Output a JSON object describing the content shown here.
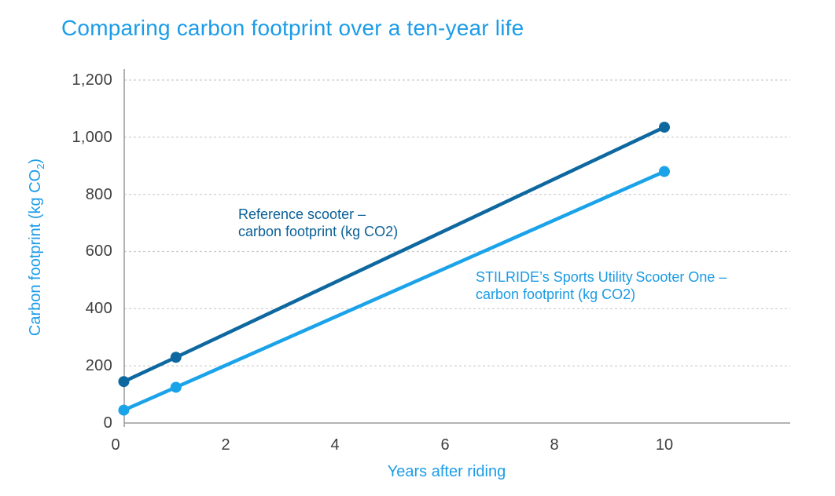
{
  "title": "Comparing carbon footprint over a ten-year life",
  "axes": {
    "y_label_prefix": "Carbon footprint (kg CO",
    "y_label_sub": "2",
    "y_label_suffix": ")",
    "x_label": "Years after riding",
    "y_ticks": [
      "1,200",
      "1,000",
      "800",
      "600",
      "400",
      "200",
      "0"
    ],
    "x_ticks": [
      "0",
      "2",
      "4",
      "6",
      "8",
      "10"
    ]
  },
  "annotations": {
    "reference": {
      "line1": "Reference scooter –",
      "line2": "carbon footprint (kg CO2)"
    },
    "stilride": {
      "line1": "STILRIDE’s Sports Utility Scooter One –",
      "line2": "carbon footprint (kg CO2)"
    }
  },
  "colors": {
    "accent_azure": "#1b9ce8",
    "reference_line": "#0e68a0",
    "stilride_line": "#1ba3ea",
    "tick_text": "#3e3e3e",
    "axis_line": "#9a9a9a",
    "gridline": "#cccccc",
    "background": "#ffffff"
  },
  "chart_data": {
    "type": "line",
    "title": "Comparing carbon footprint over a ten-year life",
    "xlabel": "Years after riding",
    "ylabel": "Carbon footprint (kg CO2)",
    "x": [
      0.15,
      1.1,
      10
    ],
    "series": [
      {
        "name": "Reference scooter – carbon footprint (kg CO2)",
        "color": "#0e68a0",
        "values": [
          145,
          230,
          1035
        ]
      },
      {
        "name": "STILRIDE’s Sports Utility Scooter One – carbon footprint (kg CO2)",
        "color": "#1ba3ea",
        "values": [
          45,
          125,
          880
        ]
      }
    ],
    "ylim": [
      0,
      1200
    ],
    "y_tick_step": 200,
    "x_ticks": [
      0,
      2,
      4,
      6,
      8,
      10
    ],
    "grid": "horizontal-dashed",
    "legend": "inline-annotations",
    "marker": "circle"
  }
}
